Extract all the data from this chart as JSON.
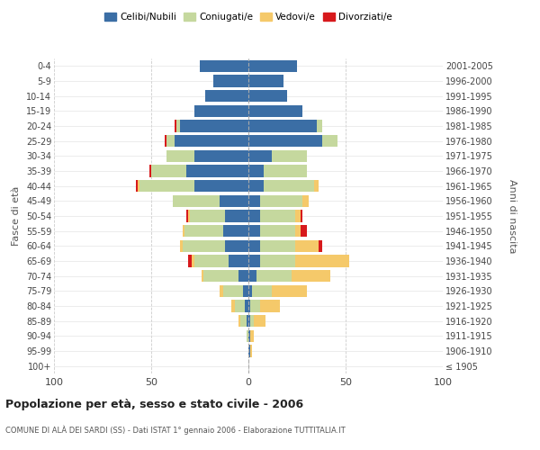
{
  "age_groups": [
    "100+",
    "95-99",
    "90-94",
    "85-89",
    "80-84",
    "75-79",
    "70-74",
    "65-69",
    "60-64",
    "55-59",
    "50-54",
    "45-49",
    "40-44",
    "35-39",
    "30-34",
    "25-29",
    "20-24",
    "15-19",
    "10-14",
    "5-9",
    "0-4"
  ],
  "birth_years": [
    "≤ 1905",
    "1906-1910",
    "1911-1915",
    "1916-1920",
    "1921-1925",
    "1926-1930",
    "1931-1935",
    "1936-1940",
    "1941-1945",
    "1946-1950",
    "1951-1955",
    "1956-1960",
    "1961-1965",
    "1966-1970",
    "1971-1975",
    "1976-1980",
    "1981-1985",
    "1986-1990",
    "1991-1995",
    "1996-2000",
    "2001-2005"
  ],
  "males_celibi": [
    0,
    0,
    0,
    1,
    2,
    3,
    5,
    10,
    12,
    13,
    12,
    15,
    28,
    32,
    28,
    38,
    35,
    28,
    22,
    18,
    25
  ],
  "males_coniugati": [
    0,
    0,
    1,
    3,
    5,
    10,
    18,
    18,
    22,
    20,
    18,
    24,
    28,
    18,
    14,
    4,
    2,
    0,
    0,
    0,
    0
  ],
  "males_vedovi": [
    0,
    0,
    0,
    1,
    2,
    2,
    1,
    1,
    1,
    1,
    1,
    0,
    1,
    0,
    0,
    0,
    0,
    0,
    0,
    0,
    0
  ],
  "males_divorziati": [
    0,
    0,
    0,
    0,
    0,
    0,
    0,
    2,
    0,
    0,
    1,
    0,
    1,
    1,
    0,
    1,
    1,
    0,
    0,
    0,
    0
  ],
  "females_nubili": [
    0,
    1,
    1,
    1,
    1,
    2,
    4,
    6,
    6,
    6,
    6,
    6,
    8,
    8,
    12,
    38,
    35,
    28,
    20,
    18,
    25
  ],
  "females_coniugate": [
    0,
    0,
    0,
    2,
    5,
    10,
    18,
    18,
    18,
    18,
    18,
    22,
    26,
    22,
    18,
    8,
    3,
    0,
    0,
    0,
    0
  ],
  "females_vedove": [
    0,
    1,
    2,
    6,
    10,
    18,
    20,
    28,
    12,
    3,
    3,
    3,
    2,
    0,
    0,
    0,
    0,
    0,
    0,
    0,
    0
  ],
  "females_divorziate": [
    0,
    0,
    0,
    0,
    0,
    0,
    0,
    0,
    2,
    3,
    1,
    0,
    0,
    0,
    0,
    0,
    0,
    0,
    0,
    0,
    0
  ],
  "colors": {
    "celibi": "#3b6ea5",
    "coniugati": "#c5d89e",
    "vedovi": "#f5c96a",
    "divorziati": "#d7191c"
  },
  "xlim": 100,
  "title": "Popolazione per età, sesso e stato civile - 2006",
  "subtitle": "COMUNE DI ALÀ DEI SARDI (SS) - Dati ISTAT 1° gennaio 2006 - Elaborazione TUTTITALIA.IT",
  "ylabel_left": "Fasce di età",
  "ylabel_right": "Anni di nascita",
  "legend_labels": [
    "Celibi/Nubili",
    "Coniugati/e",
    "Vedovi/e",
    "Divorziati/e"
  ]
}
